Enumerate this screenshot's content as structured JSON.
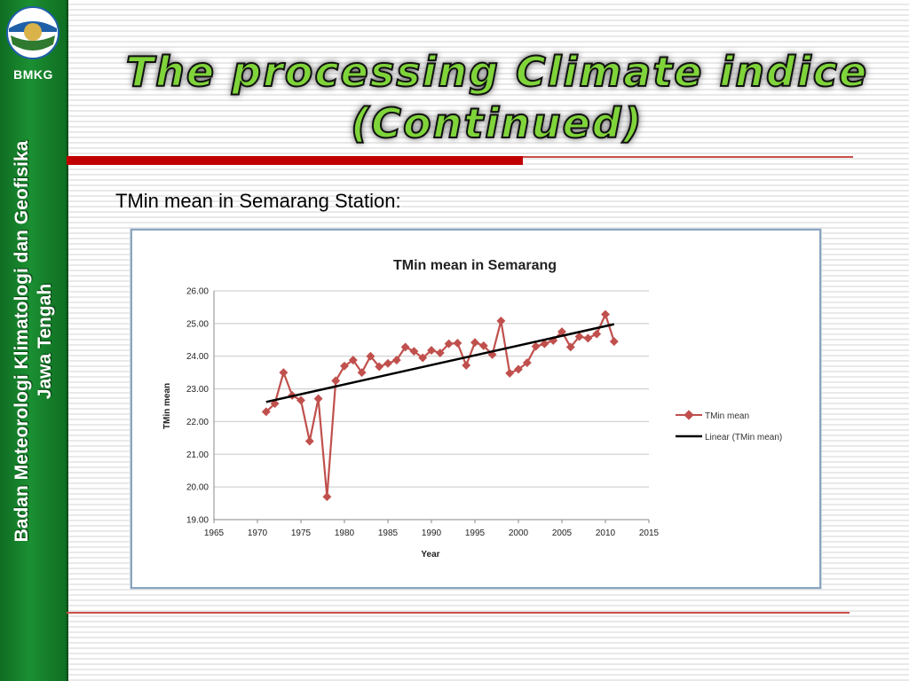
{
  "sidebar": {
    "brand": "BMKG",
    "organization_line1": "Badan Meteorologi Klimatologi dan Geofisika",
    "organization_line2": "Jawa Tengah"
  },
  "slide": {
    "title_line1": "The processing Climate indice",
    "title_line2": "(Continued)",
    "subtitle": "TMin mean in Semarang Station:"
  },
  "colors": {
    "sidebar_green": "#1b8f32",
    "title_green": "#7fd43a",
    "rule_red": "#c00000",
    "series_red": "#c0504d",
    "trend_black": "#000000"
  },
  "chart_data": {
    "type": "line",
    "title": "TMin mean in Semarang",
    "xlabel": "Year",
    "ylabel": "TMin mean",
    "xlim": [
      1965,
      2015
    ],
    "ylim": [
      19.0,
      26.0
    ],
    "x_ticks": [
      "1965",
      "1970",
      "1975",
      "1980",
      "1985",
      "1990",
      "1995",
      "2000",
      "2005",
      "2010",
      "2015"
    ],
    "y_ticks": [
      "19.00",
      "20.00",
      "21.00",
      "22.00",
      "23.00",
      "24.00",
      "25.00",
      "26.00"
    ],
    "grid": "horizontal",
    "legend": "right",
    "series": [
      {
        "name": "TMin mean",
        "x": [
          1971,
          1972,
          1973,
          1974,
          1975,
          1976,
          1977,
          1978,
          1979,
          1980,
          1981,
          1982,
          1983,
          1984,
          1985,
          1986,
          1987,
          1988,
          1989,
          1990,
          1991,
          1992,
          1993,
          1994,
          1995,
          1996,
          1997,
          1998,
          1999,
          2000,
          2001,
          2002,
          2003,
          2004,
          2005,
          2006,
          2007,
          2008,
          2009,
          2010,
          2011
        ],
        "y": [
          22.3,
          22.55,
          23.5,
          22.8,
          22.65,
          21.4,
          22.7,
          19.7,
          23.25,
          23.7,
          23.88,
          23.5,
          24.0,
          23.68,
          23.78,
          23.88,
          24.28,
          24.15,
          23.95,
          24.18,
          24.1,
          24.38,
          24.4,
          23.72,
          24.42,
          24.32,
          24.05,
          25.08,
          23.48,
          23.6,
          23.8,
          24.3,
          24.38,
          24.48,
          24.75,
          24.28,
          24.6,
          24.55,
          24.68,
          25.28,
          24.45
        ]
      },
      {
        "name": "Linear (TMin mean)",
        "trendline": true,
        "x": [
          1971,
          2011
        ],
        "y": [
          22.6,
          24.98
        ]
      }
    ]
  }
}
